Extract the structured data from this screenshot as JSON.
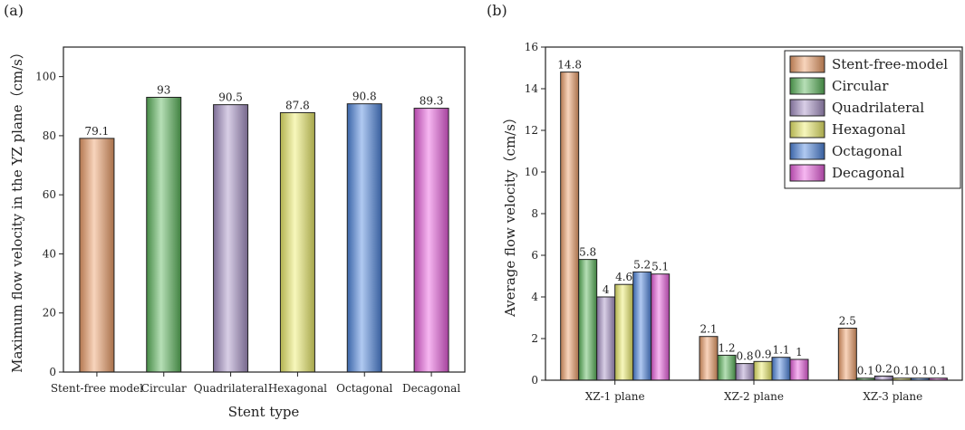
{
  "chart_data": [
    {
      "panel": "(a)",
      "type": "bar",
      "xlabel": "Stent type",
      "ylabel": "Maximum flow velocity in the YZ plane（cm/s）",
      "ylim": [
        0,
        110
      ],
      "yticks": [
        0,
        20,
        40,
        60,
        80,
        100
      ],
      "categories": [
        "Stent-free model",
        "Circular",
        "Quadrilateral",
        "Hexagonal",
        "Octagonal",
        "Decagonal"
      ],
      "values": [
        79.1,
        93,
        90.5,
        87.8,
        90.8,
        89.3
      ],
      "labels": [
        "79.1",
        "93",
        "90.5",
        "87.8",
        "90.8",
        "89.3"
      ],
      "colors": [
        "#f0a06a",
        "#5cb85c",
        "#a893c8",
        "#eded6a",
        "#4f86e0",
        "#ec5fe0"
      ]
    },
    {
      "panel": "(b)",
      "type": "bar",
      "xlabel": "",
      "ylabel": "Average flow velocity（cm/s）",
      "ylim": [
        0,
        16
      ],
      "yticks": [
        0,
        2,
        4,
        6,
        8,
        10,
        12,
        14,
        16
      ],
      "categories": [
        "XZ-1 plane",
        "XZ-2 plane",
        "XZ-3 plane"
      ],
      "legend_position": "top-right",
      "series": [
        {
          "name": "Stent-free-model",
          "color": "#f0a06a",
          "values": [
            14.8,
            2.1,
            2.5
          ],
          "labels": [
            "14.8",
            "2.1",
            "2.5"
          ]
        },
        {
          "name": "Circular",
          "color": "#5cb85c",
          "values": [
            5.8,
            1.2,
            0.1
          ],
          "labels": [
            "5.8",
            "1.2",
            "0.1"
          ]
        },
        {
          "name": "Quadrilateral",
          "color": "#a893c8",
          "values": [
            4,
            0.8,
            0.2
          ],
          "labels": [
            "4",
            "0.8",
            "0.2"
          ]
        },
        {
          "name": "Hexagonal",
          "color": "#eded6a",
          "values": [
            4.6,
            0.9,
            0.1
          ],
          "labels": [
            "4.6",
            "0.9",
            "0.1"
          ]
        },
        {
          "name": "Octagonal",
          "color": "#4f86e0",
          "values": [
            5.2,
            1.1,
            0.1
          ],
          "labels": [
            "5.2",
            "1.1",
            "0.1"
          ]
        },
        {
          "name": "Decagonal",
          "color": "#ec5fe0",
          "values": [
            5.1,
            1,
            0.1
          ],
          "labels": [
            "5.1",
            "1",
            "0.1"
          ]
        }
      ]
    }
  ]
}
